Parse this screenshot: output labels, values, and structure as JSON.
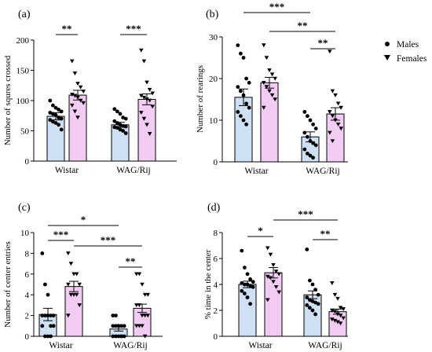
{
  "legend": {
    "items": [
      {
        "label": "Males",
        "marker": "circle"
      },
      {
        "label": "Females",
        "marker": "triangle-down"
      }
    ]
  },
  "colors": {
    "males_bar": "#cfe0f4",
    "females_bar": "#f3ccf3",
    "marker": "#000000",
    "axis": "#000000"
  },
  "chart_data": [
    {
      "panel": "(a)",
      "type": "bar",
      "ylabel": "Number of squres crossed",
      "ylim": [
        0,
        200
      ],
      "yticks": [
        0,
        50,
        100,
        150,
        200
      ],
      "categories": [
        "Wistar",
        "WAG/Rij"
      ],
      "series": [
        {
          "name": "Males",
          "values": [
            74,
            60
          ],
          "sem": [
            6,
            4
          ],
          "points": [
            [
              100,
              92,
              88,
              85,
              82,
              80,
              78,
              76,
              72,
              70,
              68,
              65,
              63,
              60,
              52
            ],
            [
              86,
              82,
              78,
              72,
              70,
              66,
              63,
              60,
              58,
              57,
              56,
              55,
              52,
              50,
              46
            ]
          ]
        },
        {
          "name": "Females",
          "values": [
            109,
            102
          ],
          "sem": [
            8,
            9
          ],
          "points": [
            [
              165,
              145,
              128,
              122,
              115,
              110,
              108,
              105,
              100,
              96,
              92,
              82,
              72
            ],
            [
              183,
              165,
              130,
              118,
              112,
              108,
              105,
              102,
              100,
              90,
              80,
              70,
              60,
              45
            ]
          ]
        }
      ],
      "significance": [
        {
          "label": "**"
        },
        {
          "label": "***"
        }
      ]
    },
    {
      "panel": "(b)",
      "type": "bar",
      "ylabel": "Number of rearings",
      "ylim": [
        0,
        30
      ],
      "yticks": [
        0,
        10,
        20,
        30
      ],
      "categories": [
        "Wistar",
        "WAG/Rij"
      ],
      "series": [
        {
          "name": "Males",
          "values": [
            15.5,
            6
          ],
          "sem": [
            2,
            1.2
          ],
          "points": [
            [
              28,
              26,
              25,
              20,
              19,
              18,
              17,
              16,
              14,
              13,
              12,
              11,
              10,
              9
            ],
            [
              12,
              11,
              10,
              9,
              8,
              7,
              6,
              5,
              4.5,
              4,
              3,
              2,
              1.5,
              1
            ]
          ]
        },
        {
          "name": "Females",
          "values": [
            19,
            11.5
          ],
          "sem": [
            1.3,
            1.5
          ],
          "points": [
            [
              28,
              25,
              22,
              21,
              20,
              19,
              18,
              17,
              16,
              15,
              13
            ],
            [
              26.5,
              17,
              16,
              14,
              13,
              12,
              11,
              10,
              9,
              8,
              7,
              5
            ]
          ]
        }
      ],
      "significance": [
        {
          "label": "***"
        },
        {
          "label": "**"
        },
        {
          "label": "**"
        }
      ]
    },
    {
      "panel": "(c)",
      "type": "bar",
      "ylabel": "Number of center entries",
      "ylim": [
        0,
        10
      ],
      "yticks": [
        0,
        2,
        4,
        6,
        8,
        10
      ],
      "categories": [
        "Wistar",
        "WAG/Rij"
      ],
      "series": [
        {
          "name": "Males",
          "values": [
            2.1,
            0.7
          ],
          "sem": [
            0.6,
            0.2
          ],
          "points": [
            [
              8,
              5,
              4,
              2,
              2,
              2,
              2,
              2,
              1,
              1,
              1,
              0,
              0,
              0
            ],
            [
              2,
              2,
              1,
              1,
              1,
              1,
              1,
              1,
              0,
              0,
              0,
              0,
              0,
              0
            ]
          ]
        },
        {
          "name": "Females",
          "values": [
            4.8,
            2.7
          ],
          "sem": [
            0.5,
            0.4
          ],
          "points": [
            [
              8,
              7,
              6,
              6,
              5,
              5,
              4,
              4,
              4,
              3,
              2
            ],
            [
              6,
              6,
              5,
              4,
              4,
              3,
              3,
              2,
              2,
              2,
              1,
              1,
              1,
              0
            ]
          ]
        }
      ],
      "significance": [
        {
          "label": "*"
        },
        {
          "label": "***"
        },
        {
          "label": "***"
        },
        {
          "label": "**"
        }
      ]
    },
    {
      "panel": "(d)",
      "type": "bar",
      "ylabel": "% time in the center",
      "ylim": [
        0,
        8
      ],
      "yticks": [
        0,
        2,
        4,
        6,
        8
      ],
      "categories": [
        "Wistar",
        "WAG/Rij"
      ],
      "series": [
        {
          "name": "Males",
          "values": [
            4.0,
            3.2
          ],
          "sem": [
            0.25,
            0.3
          ],
          "points": [
            [
              6.6,
              5.3,
              4.8,
              4.4,
              4.2,
              4.1,
              4,
              4,
              3.9,
              3.8,
              3.5,
              3.3,
              3,
              2.5
            ],
            [
              6.7,
              4.3,
              4,
              3.6,
              3.2,
              3,
              2.8,
              2.7,
              2.6,
              2.5,
              2.4,
              2.2,
              2,
              1.7
            ]
          ]
        },
        {
          "name": "Females",
          "values": [
            4.9,
            1.9
          ],
          "sem": [
            0.4,
            0.2
          ],
          "points": [
            [
              6.8,
              6.3,
              5.5,
              5,
              4.8,
              4.6,
              4.5,
              4.2,
              3.8,
              3.4,
              2.8
            ],
            [
              4.1,
              3.2,
              2.9,
              2.2,
              2.1,
              2,
              1.9,
              1.7,
              1.6,
              1.4,
              1.3,
              1.2,
              1.1,
              1
            ]
          ]
        }
      ],
      "significance": [
        {
          "label": "*"
        },
        {
          "label": "***"
        },
        {
          "label": "**"
        }
      ]
    }
  ]
}
